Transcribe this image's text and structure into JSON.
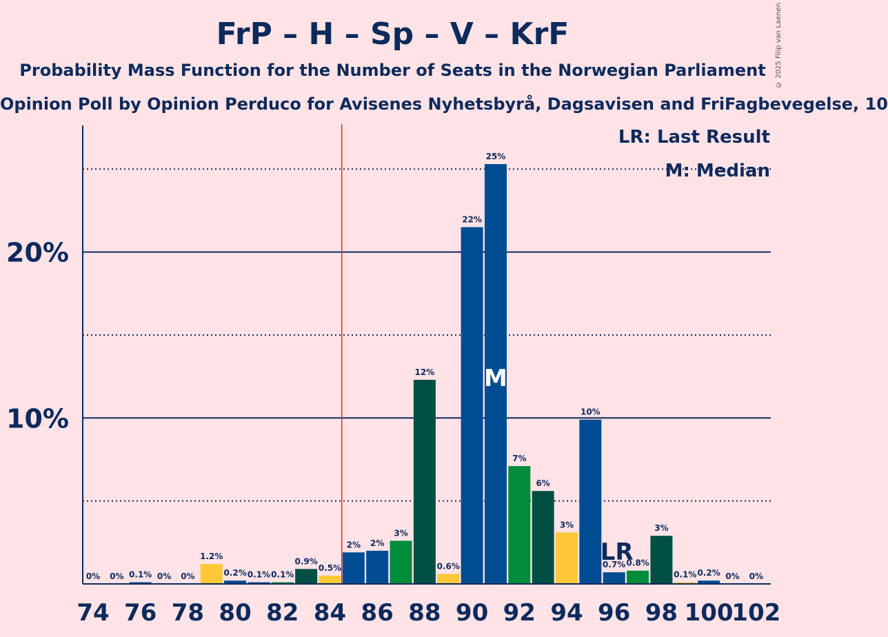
{
  "title": "FrP – H – Sp – V – KrF",
  "subtitle": "Probability Mass Function for the Number of Seats in the Norwegian Parliament",
  "poll": "Opinion Poll by Opinion Perduco for Avisenes Nyhetsbyrå, Dagsavisen and FriFagbevegelse, 10",
  "credit": "© 2025 Filip van Laenen",
  "legend": {
    "lr": "LR: Last Result",
    "median": "M: Median"
  },
  "colors": {
    "background": "#FFE3E6",
    "text": "#0D2A5C",
    "majority_line": "#E8262C",
    "blue": "#004C93",
    "green": "#008C3A",
    "darkgreen": "#004F44",
    "yellow": "#FFC838"
  },
  "chart_data": {
    "type": "bar",
    "x": [
      74,
      75,
      76,
      77,
      78,
      79,
      80,
      81,
      82,
      83,
      84,
      85,
      86,
      87,
      88,
      89,
      90,
      91,
      92,
      93,
      94,
      95,
      96,
      97,
      98,
      99,
      100,
      101,
      102
    ],
    "values": [
      0,
      0,
      0.1,
      0,
      0,
      1.2,
      0.2,
      0.1,
      0.1,
      0.9,
      0.5,
      1.9,
      2.0,
      2.6,
      12.3,
      0.6,
      21.5,
      25.3,
      7.1,
      5.6,
      3.1,
      9.9,
      0.7,
      0.8,
      2.9,
      0.1,
      0.2,
      0,
      0
    ],
    "labels": [
      "0%",
      "0%",
      "0.1%",
      "0%",
      "0%",
      "1.2%",
      "0.2%",
      "0.1%",
      "0.1%",
      "0.9%",
      "0.5%",
      "2%",
      "2%",
      "3%",
      "12%",
      "0.6%",
      "22%",
      "25%",
      "7%",
      "6%",
      "3%",
      "10%",
      "0.7%",
      "0.8%",
      "3%",
      "0.1%",
      "0.2%",
      "0%",
      "0%"
    ],
    "colors": [
      "blue",
      "blue",
      "blue",
      "green",
      "darkgreen",
      "yellow",
      "blue",
      "blue",
      "green",
      "darkgreen",
      "yellow",
      "blue",
      "blue",
      "green",
      "darkgreen",
      "yellow",
      "blue",
      "blue",
      "green",
      "darkgreen",
      "yellow",
      "blue",
      "blue",
      "green",
      "darkgreen",
      "yellow",
      "blue",
      "blue",
      "green"
    ],
    "xticks": [
      74,
      76,
      78,
      80,
      82,
      84,
      86,
      88,
      90,
      92,
      94,
      96,
      98,
      100,
      102
    ],
    "ylim": [
      0,
      27.5
    ],
    "yticks_major": [
      10,
      20
    ],
    "ytick_labels": [
      "10%",
      "20%"
    ],
    "yticks_minor": [
      5,
      15,
      25
    ],
    "majority_seat": 85,
    "median_seat": 91,
    "median_marker": "M",
    "last_result_seat": 96,
    "last_result_marker": "LR"
  }
}
